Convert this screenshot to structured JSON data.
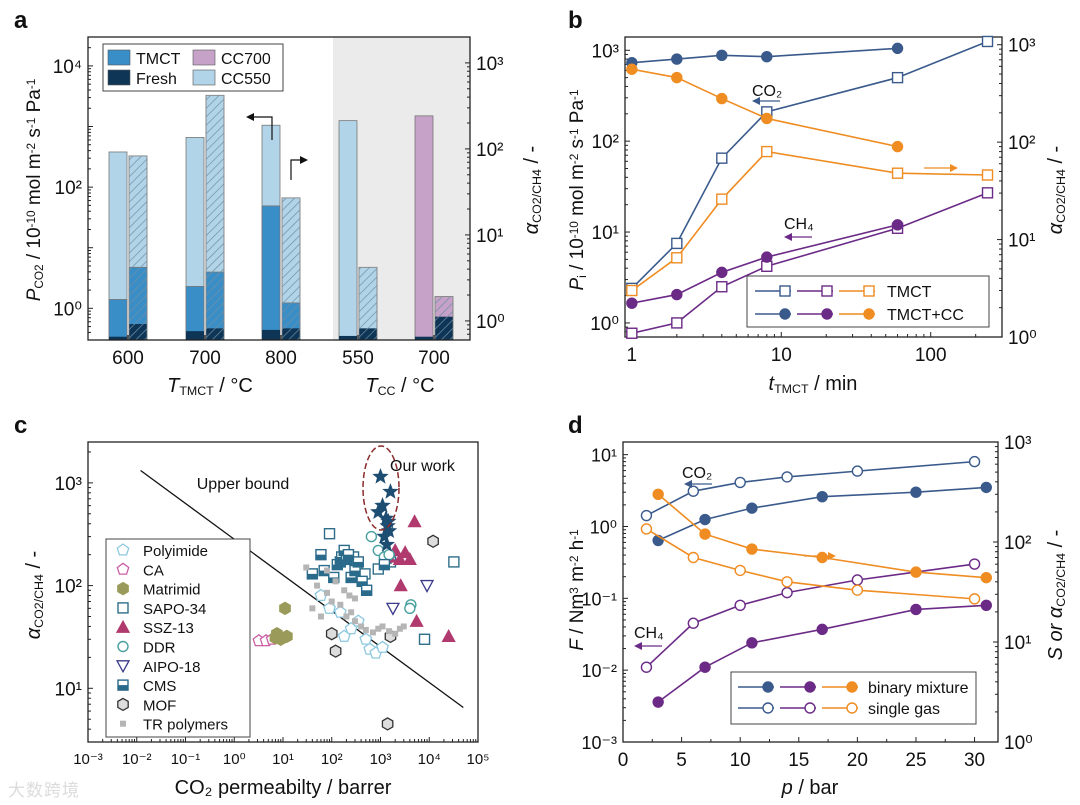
{
  "watermark": "大数跨境",
  "chart_data": [
    {
      "panel": "a",
      "type": "bar",
      "left_axis": {
        "label": "P",
        "label_sub": "CO2",
        "label_rest": " / 10",
        "label_sup": "-10",
        "label_units": " mol m",
        "scale": "log",
        "range": [
          0.3,
          30000
        ],
        "ticks": [
          "10⁰",
          "10²",
          "10⁴"
        ]
      },
      "right_axis": {
        "label": "α",
        "label_sub": "CO2/CH4",
        "label_rest": " / -",
        "scale": "log",
        "range": [
          0.6,
          2000
        ],
        "ticks": [
          "10⁰",
          "10¹",
          "10²",
          "10³"
        ]
      },
      "legend": [
        "TMCT",
        "Fresh",
        "CC700",
        "CC550"
      ],
      "groups": [
        {
          "label": "600",
          "permeance_fresh": 0.34,
          "permeance_tmct": 1.4,
          "permeance_cc": 380,
          "selectivity_fresh": 0.92,
          "selectivity_tmct": 4.2,
          "selectivity_cc": 83,
          "cc_type": "CC550"
        },
        {
          "label": "700",
          "permeance_fresh": 0.42,
          "permeance_tmct": 2.3,
          "permeance_cc": 660,
          "selectivity_fresh": 0.82,
          "selectivity_tmct": 3.7,
          "selectivity_cc": 420,
          "cc_type": "CC550"
        },
        {
          "label": "800",
          "permeance_fresh": 0.44,
          "permeance_tmct": 49,
          "permeance_cc": 1050,
          "selectivity_fresh": 0.82,
          "selectivity_tmct": 1.62,
          "selectivity_cc": 27,
          "cc_type": "CC550"
        },
        {
          "label": "550",
          "permeance_fresh": 0.35,
          "permeance_cc": 1250,
          "selectivity_fresh": 0.82,
          "selectivity_cc": 4.2,
          "cc_type": "CC550"
        },
        {
          "label": "700",
          "permeance_fresh": 0.34,
          "permeance_cc": 1500,
          "selectivity_fresh": 1.12,
          "selectivity_cc": 1.92,
          "cc_type": "CC700"
        }
      ],
      "xlabel_left": "T",
      "xlabel_left_sub": "TMCT",
      "xlabel_left_rest": " / °C",
      "xlabel_right": "T",
      "xlabel_right_sub": "CC",
      "xlabel_right_rest": " / °C",
      "colors": {
        "TMCT": "#3a8ec8",
        "Fresh": "#0e3556",
        "CC700": "#c6a2c8",
        "CC550": "#b2d4e8",
        "shade": "#ebebeb"
      }
    },
    {
      "panel": "b",
      "type": "line",
      "xlabel": "t",
      "xlabel_sub": "TMCT",
      "xlabel_rest": " / min",
      "xscale": "log",
      "xlim": [
        0.9,
        300
      ],
      "xticks": [
        "1",
        "10",
        "100"
      ],
      "left_axis": {
        "label": "P",
        "label_sub": "i",
        "label_rest": " / 10",
        "label_sup": "-10",
        "label_units": " mol m",
        "range": [
          0.7,
          1400
        ],
        "ticks": [
          "10⁰",
          "10¹",
          "10²",
          "10³"
        ]
      },
      "right_axis": {
        "label": "α",
        "label_sub": "CO2/CH4",
        "label_rest": " / -",
        "range": [
          1,
          1200
        ],
        "ticks": [
          "10⁰",
          "10¹",
          "10²",
          "10³"
        ]
      },
      "annotations": {
        "co2": "CO₂",
        "ch4": "CH₄"
      },
      "legend": [
        "TMCT",
        "TMCT+CC"
      ],
      "series": [
        {
          "name": "CO2 TMCT",
          "axis": "left",
          "marker": "square",
          "color": "#3a5a8c",
          "x": [
            1,
            2,
            4,
            8,
            60,
            240
          ],
          "y": [
            2.4,
            7.5,
            65,
            210,
            500,
            1250
          ]
        },
        {
          "name": "CH4 TMCT",
          "axis": "left",
          "marker": "square",
          "color": "#6b2a86",
          "x": [
            1,
            2,
            4,
            8,
            60,
            240
          ],
          "y": [
            0.77,
            1.0,
            2.5,
            4.2,
            11,
            27
          ]
        },
        {
          "name": "Selectivity TMCT",
          "axis": "right",
          "marker": "square",
          "color": "#ef8c22",
          "x": [
            1,
            2,
            4,
            8,
            60,
            240
          ],
          "y": [
            3.0,
            6.5,
            26,
            80,
            48,
            46
          ]
        },
        {
          "name": "CO2 TMCT+CC",
          "axis": "left",
          "marker": "circle",
          "color": "#3a5a8c",
          "x": [
            1,
            2,
            4,
            8,
            60
          ],
          "y": [
            730,
            800,
            880,
            850,
            1050
          ]
        },
        {
          "name": "CH4 TMCT+CC",
          "axis": "left",
          "marker": "circle",
          "color": "#6b2a86",
          "x": [
            1,
            2,
            4,
            8,
            60
          ],
          "y": [
            1.65,
            2.05,
            3.6,
            5.3,
            12
          ]
        },
        {
          "name": "Selectivity TMCT+CC",
          "axis": "right",
          "marker": "circle",
          "color": "#ef8c22",
          "x": [
            1,
            2,
            4,
            8,
            60
          ],
          "y": [
            560,
            460,
            280,
            175,
            90
          ]
        }
      ]
    },
    {
      "panel": "c",
      "type": "scatter",
      "xlabel": "CO₂ permeabilty / barrer",
      "ylabel": "α",
      "ylabel_sub": "CO2/CH4",
      "ylabel_rest": " / -",
      "xscale": "log",
      "xlim": [
        0.001,
        100000
      ],
      "xticks": [
        "10⁻³",
        "10⁻²",
        "10⁻¹",
        "10⁰",
        "10¹",
        "10²",
        "10³",
        "10⁴",
        "10⁵"
      ],
      "yscale": "log",
      "ylim": [
        3,
        2500
      ],
      "yticks": [
        "10¹",
        "10²",
        "10³"
      ],
      "upper_bound_label": "Upper bound",
      "upper_bound": [
        [
          0.012,
          1320
        ],
        [
          50000,
          6.5
        ]
      ],
      "our_work_label": "Our work",
      "legend": [
        "Polyimide",
        "CA",
        "Matrimid",
        "SAPO-34",
        "SSZ-13",
        "DDR",
        "AIPO-18",
        "CMS",
        "MOF",
        "TR polymers"
      ],
      "series": [
        {
          "name": "Polyimide",
          "marker": "pentagon-open",
          "color": "#8cc8e0",
          "points": [
            [
              60,
              80
            ],
            [
              90,
              60
            ],
            [
              150,
              55
            ],
            [
              250,
              38
            ],
            [
              600,
              24
            ],
            [
              800,
              22
            ],
            [
              1100,
              25
            ],
            [
              500,
              30
            ],
            [
              180,
              32
            ],
            [
              350,
              45
            ]
          ]
        },
        {
          "name": "CA",
          "marker": "pentagon-open",
          "color": "#cc5fa5",
          "points": [
            [
              3.2,
              29
            ],
            [
              4.5,
              29
            ],
            [
              6,
              30
            ]
          ]
        },
        {
          "name": "Matrimid",
          "marker": "hexagon",
          "color": "#9a9a5a",
          "points": [
            [
              7,
              31
            ],
            [
              9,
              30
            ],
            [
              12,
              32
            ],
            [
              11,
              60
            ],
            [
              7.5,
              34
            ]
          ]
        },
        {
          "name": "SAPO-34",
          "marker": "square-open",
          "color": "#2f6e8a",
          "points": [
            [
              90,
              320
            ],
            [
              280,
              190
            ],
            [
              330,
              160
            ],
            [
              480,
              130
            ],
            [
              1600,
              170
            ],
            [
              1300,
              185
            ],
            [
              900,
              145
            ],
            [
              32000,
              170
            ],
            [
              8000,
              30
            ]
          ]
        },
        {
          "name": "SSZ-13",
          "marker": "triangle",
          "color": "#b03a6e",
          "points": [
            [
              2000,
              220
            ],
            [
              2500,
              180
            ],
            [
              3200,
              210
            ],
            [
              4000,
              180
            ],
            [
              5000,
              420
            ],
            [
              5500,
              45
            ],
            [
              2600,
              100
            ],
            [
              25000,
              32
            ],
            [
              1500,
              190
            ]
          ]
        },
        {
          "name": "DDR",
          "marker": "circle-open",
          "color": "#4aa0a0",
          "points": [
            [
              650,
              300
            ],
            [
              900,
              220
            ],
            [
              1200,
              190
            ],
            [
              1500,
              200
            ],
            [
              4200,
              65
            ],
            [
              4000,
              60
            ]
          ]
        },
        {
          "name": "AIPO-18",
          "marker": "triangle-down-open",
          "color": "#3a3a8a",
          "points": [
            [
              1800,
              60
            ],
            [
              9000,
              100
            ]
          ]
        },
        {
          "name": "CMS",
          "marker": "square-half",
          "color": "#2a6a8a",
          "points": [
            [
              40,
              130
            ],
            [
              60,
              200
            ],
            [
              70,
              140
            ],
            [
              110,
              120
            ],
            [
              130,
              160
            ],
            [
              150,
              170
            ],
            [
              160,
              190
            ],
            [
              200,
              180
            ],
            [
              250,
              120
            ],
            [
              300,
              140
            ],
            [
              350,
              170
            ],
            [
              420,
              110
            ],
            [
              520,
              90
            ],
            [
              180,
              220
            ],
            [
              220,
              200
            ],
            [
              1200,
              160
            ]
          ]
        },
        {
          "name": "MOF",
          "marker": "hexagon-open",
          "color": "#3a3a3a",
          "points": [
            [
              100,
              34
            ],
            [
              120,
              23
            ],
            [
              1600,
              32
            ],
            [
              12000,
              270
            ],
            [
              1400,
              4.5
            ]
          ]
        },
        {
          "name": "TR polymers",
          "marker": "square-small",
          "color": "#b5b5b5",
          "points": [
            [
              30,
              150
            ],
            [
              50,
              100
            ],
            [
              80,
              85
            ],
            [
              100,
              70
            ],
            [
              150,
              65
            ],
            [
              200,
              50
            ],
            [
              250,
              55
            ],
            [
              300,
              45
            ],
            [
              400,
              40
            ],
            [
              500,
              37
            ],
            [
              700,
              35
            ],
            [
              900,
              38
            ],
            [
              1100,
              40
            ],
            [
              1500,
              36
            ],
            [
              2000,
              34
            ],
            [
              2500,
              38
            ],
            [
              3000,
              40
            ],
            [
              80,
              140
            ],
            [
              120,
              110
            ],
            [
              180,
              90
            ],
            [
              230,
              80
            ],
            [
              300,
              75
            ],
            [
              60,
              50
            ],
            [
              40,
              60
            ]
          ]
        },
        {
          "name": "Our work",
          "marker": "star",
          "color": "#1e4d72",
          "points": [
            [
              1000,
              1150
            ],
            [
              1600,
              820
            ],
            [
              900,
              520
            ],
            [
              1100,
              600
            ],
            [
              1300,
              450
            ],
            [
              1400,
              380
            ],
            [
              1500,
              340
            ],
            [
              1200,
              300
            ],
            [
              1350,
              250
            ],
            [
              1450,
              420
            ]
          ]
        }
      ]
    },
    {
      "panel": "d",
      "type": "line",
      "xlabel": "p",
      "xlabel_rest": " / bar",
      "xlim": [
        0,
        32
      ],
      "xticks": [
        "0",
        "5",
        "10",
        "15",
        "20",
        "25",
        "30"
      ],
      "left_axis": {
        "label": "F",
        "label_rest": " / Nm",
        "label_sup": "3",
        "label_units": " m",
        "range": [
          0.001,
          15
        ],
        "ticks": [
          "10⁻³",
          "10⁻²",
          "10⁻¹",
          "10⁰",
          "10¹"
        ]
      },
      "right_axis": {
        "label": "S or α",
        "label_sub": "CO2/CH4",
        "label_rest": " / -",
        "range": [
          1,
          1000
        ],
        "ticks": [
          "10⁰",
          "10¹",
          "10²",
          "10³"
        ]
      },
      "annotations": {
        "co2": "CO₂",
        "ch4": "CH₄"
      },
      "legend": [
        "binary mixture",
        "single gas"
      ],
      "series": [
        {
          "name": "CO2 single gas",
          "axis": "left",
          "marker": "circle-open",
          "color": "#3a5a8c",
          "x": [
            2,
            6,
            10,
            14,
            20,
            30
          ],
          "y": [
            1.42,
            3.1,
            4.1,
            4.9,
            5.9,
            8.0
          ]
        },
        {
          "name": "CO2 binary mixture",
          "axis": "left",
          "marker": "circle",
          "color": "#3a5a8c",
          "x": [
            3,
            7,
            11,
            17,
            25,
            31
          ],
          "y": [
            0.64,
            1.25,
            1.8,
            2.6,
            3.0,
            3.5
          ]
        },
        {
          "name": "CH4 single gas",
          "axis": "left",
          "marker": "circle-open",
          "color": "#6b2a86",
          "x": [
            2,
            6,
            10,
            14,
            20,
            30
          ],
          "y": [
            0.011,
            0.045,
            0.08,
            0.12,
            0.18,
            0.3
          ]
        },
        {
          "name": "CH4 binary mixture",
          "axis": "left",
          "marker": "circle",
          "color": "#6b2a86",
          "x": [
            3,
            7,
            11,
            17,
            25,
            31
          ],
          "y": [
            0.0036,
            0.011,
            0.024,
            0.037,
            0.07,
            0.08
          ]
        },
        {
          "name": "Selectivity single gas",
          "axis": "right",
          "marker": "circle-open",
          "color": "#ef8c22",
          "x": [
            2,
            6,
            10,
            14,
            20,
            30
          ],
          "y": [
            135,
            70,
            52,
            40,
            33,
            27
          ]
        },
        {
          "name": "Selectivity binary mixture",
          "axis": "right",
          "marker": "circle",
          "color": "#ef8c22",
          "x": [
            3,
            7,
            11,
            17,
            25,
            31
          ],
          "y": [
            300,
            120,
            85,
            70,
            50,
            44
          ]
        }
      ]
    }
  ]
}
